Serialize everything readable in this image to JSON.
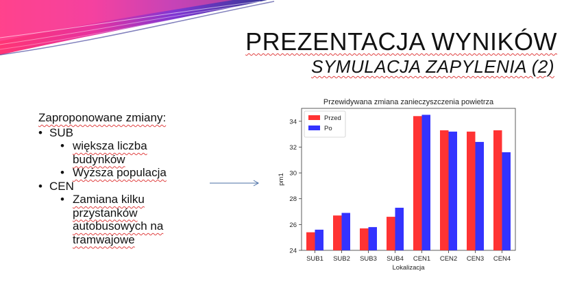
{
  "slide": {
    "title": "PREZENTACJA WYNIKÓW",
    "subtitle": "SYMULACJA ZAPYLENIA (2)",
    "intro": "Zaproponowane zmiany:",
    "items": [
      {
        "label": "SUB",
        "sub": [
          "większa liczba budynków",
          "Wyższa populacja"
        ]
      },
      {
        "label": "CEN",
        "sub": [
          "Zamiana kilku przystanków autobusowych na tramwajowe"
        ]
      }
    ],
    "colors": {
      "decoration": [
        "#ff2a6d",
        "#c8259a",
        "#7a2bd1",
        "#2d2b8f"
      ],
      "arrow": "#4a6fa5"
    }
  },
  "chart_data": {
    "type": "bar",
    "title": "Przewidywana zmiana zanieczyszczenia powietrza",
    "xlabel": "Lokalizacja",
    "ylabel": "pm1",
    "categories": [
      "SUB1",
      "SUB2",
      "SUB3",
      "SUB4",
      "CEN1",
      "CEN2",
      "CEN3",
      "CEN4"
    ],
    "series": [
      {
        "name": "Przed",
        "color": "#ff3333",
        "values": [
          25.4,
          26.7,
          25.7,
          26.6,
          34.4,
          33.3,
          33.2,
          33.3
        ]
      },
      {
        "name": "Po",
        "color": "#3333ff",
        "values": [
          25.6,
          26.9,
          25.8,
          27.3,
          34.5,
          33.2,
          32.4,
          31.6
        ]
      }
    ],
    "ylim": [
      24,
      35
    ],
    "yticks": [
      24,
      26,
      28,
      30,
      32,
      34
    ],
    "legend": "top-left",
    "grid": false
  }
}
